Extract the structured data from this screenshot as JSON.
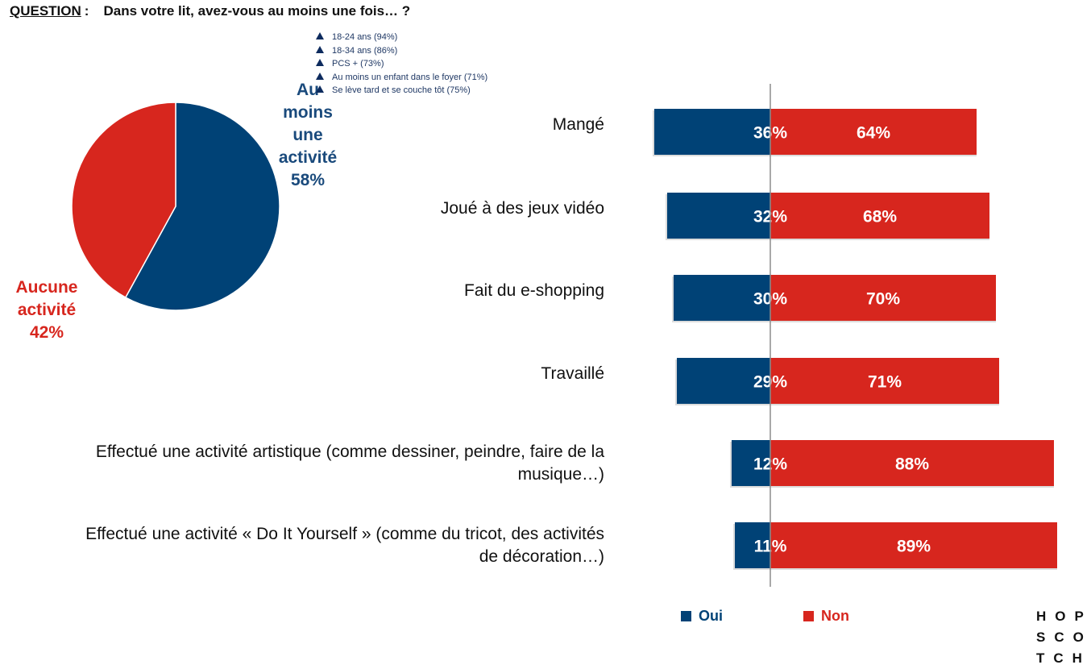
{
  "question": {
    "label": "QUESTION",
    "sep": ":",
    "text": "Dans votre lit, avez-vous au moins une fois… ?"
  },
  "subgroups": [
    "18-24 ans (94%)",
    "18-34 ans (86%)",
    "PCS + (73%)",
    "Au moins un enfant dans le foyer (71%)",
    "Se lève tard et se couche tôt (75%)"
  ],
  "pie": {
    "oui_lines": [
      "Au",
      "moins",
      "une",
      "activité",
      "58%"
    ],
    "non_lines": [
      "Aucune",
      "activité",
      "42%"
    ]
  },
  "legend": {
    "oui": "Oui",
    "non": "Non"
  },
  "logo": [
    "HOP",
    "SCO",
    "TCH"
  ],
  "colors": {
    "oui": "#004276",
    "non": "#d7261e",
    "subgroup_marker": "#0d2b5e"
  },
  "chart_data": [
    {
      "type": "pie",
      "series": [
        {
          "name": "Au moins une activité",
          "value": 58
        },
        {
          "name": "Aucune activité",
          "value": 42
        }
      ]
    },
    {
      "type": "bar",
      "orientation": "horizontal",
      "stacked": true,
      "categories": [
        "Mangé",
        "Joué à des  jeux vidéo",
        "Fait du e-shopping",
        "Travaillé",
        "Effectué une activité artistique (comme dessiner, peindre, faire de la musique…)",
        "Effectué une activité « Do It Yourself » (comme du tricot, des activités de décoration…)"
      ],
      "category_lines": [
        [
          "Mangé"
        ],
        [
          "Joué à des  jeux vidéo"
        ],
        [
          "Fait du e-shopping"
        ],
        [
          "Travaillé"
        ],
        [
          "Effectué une activité artistique (comme dessiner, peindre, faire de la",
          "musique…)"
        ],
        [
          "Effectué une activité « Do It Yourself » (comme du tricot, des activités",
          "de décoration…)"
        ]
      ],
      "series": [
        {
          "name": "Oui",
          "values": [
            36,
            32,
            30,
            29,
            12,
            11
          ],
          "labels": [
            "36%",
            "32%",
            "30%",
            "29%",
            "12%",
            "11%"
          ]
        },
        {
          "name": "Non",
          "values": [
            64,
            68,
            70,
            71,
            88,
            89
          ],
          "labels": [
            "64%",
            "68%",
            "70%",
            "71%",
            "88%",
            "89%"
          ]
        }
      ],
      "units": "%"
    }
  ]
}
